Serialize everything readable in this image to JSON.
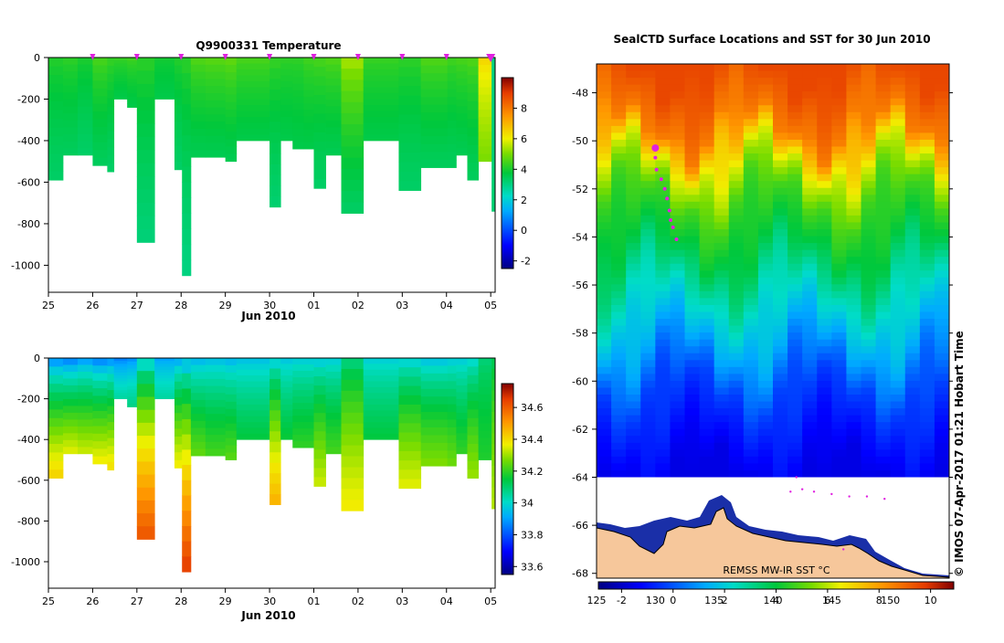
{
  "charts": [
    {
      "id": "temperature",
      "type": "heatmap",
      "title": "Q9900331  Temperature",
      "xlabel": "Jun 2010",
      "x_tick_labels": [
        "25",
        "26",
        "27",
        "28",
        "29",
        "30",
        "01",
        "02",
        "03",
        "04",
        "05"
      ],
      "xlim": [
        25,
        35.1
      ],
      "ylim": [
        -1130,
        0
      ],
      "y_ticks": [
        0,
        -200,
        -400,
        -600,
        -800,
        -1000
      ],
      "colorbar_ticks": [
        -2,
        0,
        2,
        4,
        6,
        8
      ],
      "colorbar_range": [
        -2.5,
        10
      ],
      "profile_markers_x": [
        26,
        27,
        28,
        29,
        30,
        31,
        32,
        33,
        34,
        35
      ],
      "profiles": [
        {
          "x": 25.0,
          "w": 0.33,
          "depth": 590,
          "surface": 4.2,
          "deep": 3.3
        },
        {
          "x": 25.33,
          "w": 0.33,
          "depth": 470,
          "surface": 4.3,
          "deep": 3.4
        },
        {
          "x": 25.66,
          "w": 0.34,
          "depth": 470,
          "surface": 4.1,
          "deep": 3.3
        },
        {
          "x": 26.0,
          "w": 0.33,
          "depth": 520,
          "surface": 4.6,
          "deep": 3.4
        },
        {
          "x": 26.33,
          "w": 0.15,
          "depth": 550,
          "surface": 4.4,
          "deep": 3.3
        },
        {
          "x": 26.48,
          "w": 0.3,
          "depth": 200,
          "surface": 4.4,
          "deep": 3.6
        },
        {
          "x": 26.78,
          "w": 0.22,
          "depth": 240,
          "surface": 4.5,
          "deep": 3.6
        },
        {
          "x": 27.0,
          "w": 0.4,
          "depth": 890,
          "surface": 4.3,
          "deep": 3.1
        },
        {
          "x": 27.4,
          "w": 0.45,
          "depth": 200,
          "surface": 4.0,
          "deep": 3.6
        },
        {
          "x": 27.85,
          "w": 0.17,
          "depth": 540,
          "surface": 4.2,
          "deep": 3.3
        },
        {
          "x": 28.02,
          "w": 0.2,
          "depth": 1050,
          "surface": 4.3,
          "deep": 3.0
        },
        {
          "x": 28.22,
          "w": 0.33,
          "depth": 480,
          "surface": 4.7,
          "deep": 3.5
        },
        {
          "x": 28.55,
          "w": 0.45,
          "depth": 480,
          "surface": 4.8,
          "deep": 3.5
        },
        {
          "x": 29.0,
          "w": 0.25,
          "depth": 500,
          "surface": 4.9,
          "deep": 3.5
        },
        {
          "x": 29.25,
          "w": 0.75,
          "depth": 400,
          "surface": 4.6,
          "deep": 3.6
        },
        {
          "x": 30.0,
          "w": 0.25,
          "depth": 720,
          "surface": 4.4,
          "deep": 3.2
        },
        {
          "x": 30.25,
          "w": 0.27,
          "depth": 400,
          "surface": 4.3,
          "deep": 3.6
        },
        {
          "x": 30.52,
          "w": 0.25,
          "depth": 440,
          "surface": 4.3,
          "deep": 3.6
        },
        {
          "x": 30.77,
          "w": 0.23,
          "depth": 440,
          "surface": 4.5,
          "deep": 3.6
        },
        {
          "x": 31.0,
          "w": 0.27,
          "depth": 630,
          "surface": 4.6,
          "deep": 3.3
        },
        {
          "x": 31.27,
          "w": 0.35,
          "depth": 470,
          "surface": 4.7,
          "deep": 3.5
        },
        {
          "x": 31.62,
          "w": 0.5,
          "depth": 750,
          "surface": 5.6,
          "deep": 3.3
        },
        {
          "x": 32.12,
          "w": 0.8,
          "depth": 400,
          "surface": 4.4,
          "deep": 3.6
        },
        {
          "x": 32.92,
          "w": 0.5,
          "depth": 640,
          "surface": 4.3,
          "deep": 3.3
        },
        {
          "x": 33.42,
          "w": 0.6,
          "depth": 530,
          "surface": 4.7,
          "deep": 3.4
        },
        {
          "x": 34.02,
          "w": 0.2,
          "depth": 530,
          "surface": 4.5,
          "deep": 3.4
        },
        {
          "x": 34.22,
          "w": 0.25,
          "depth": 470,
          "surface": 4.6,
          "deep": 3.5
        },
        {
          "x": 34.47,
          "w": 0.25,
          "depth": 590,
          "surface": 4.7,
          "deep": 3.4
        },
        {
          "x": 34.72,
          "w": 0.3,
          "depth": 500,
          "surface": 6.6,
          "deep": 5.0
        },
        {
          "x": 35.02,
          "w": 0.08,
          "depth": 740,
          "surface": 3.0,
          "deep": 3.2
        }
      ]
    },
    {
      "id": "salinity",
      "type": "heatmap",
      "title": "",
      "xlabel": "Jun 2010",
      "x_tick_labels": [
        "25",
        "26",
        "27",
        "28",
        "29",
        "30",
        "01",
        "02",
        "03",
        "04",
        "05"
      ],
      "xlim": [
        25,
        35.1
      ],
      "ylim": [
        -1130,
        0
      ],
      "y_ticks": [
        0,
        -200,
        -400,
        -600,
        -800,
        -1000
      ],
      "colorbar_ticks": [
        33.6,
        33.8,
        34,
        34.2,
        34.4,
        34.6
      ],
      "colorbar_tick_labels": [
        "33.6",
        "33.8",
        "34",
        "34.2",
        "34.4",
        "34.6"
      ],
      "colorbar_range": [
        33.55,
        34.75
      ],
      "profiles": [
        {
          "x": 25.0,
          "w": 0.33,
          "depth": 590,
          "surface": 33.82,
          "deep": 34.42
        },
        {
          "x": 25.33,
          "w": 0.33,
          "depth": 470,
          "surface": 33.8,
          "deep": 34.36
        },
        {
          "x": 25.66,
          "w": 0.34,
          "depth": 470,
          "surface": 33.84,
          "deep": 34.34
        },
        {
          "x": 26.0,
          "w": 0.33,
          "depth": 520,
          "surface": 33.8,
          "deep": 34.38
        },
        {
          "x": 26.33,
          "w": 0.15,
          "depth": 550,
          "surface": 33.82,
          "deep": 34.4
        },
        {
          "x": 26.48,
          "w": 0.3,
          "depth": 200,
          "surface": 33.83,
          "deep": 34.05
        },
        {
          "x": 26.78,
          "w": 0.22,
          "depth": 240,
          "surface": 33.85,
          "deep": 34.08
        },
        {
          "x": 27.0,
          "w": 0.4,
          "depth": 890,
          "surface": 33.92,
          "deep": 34.62
        },
        {
          "x": 27.4,
          "w": 0.45,
          "depth": 200,
          "surface": 33.88,
          "deep": 34.05
        },
        {
          "x": 27.85,
          "w": 0.17,
          "depth": 540,
          "surface": 33.86,
          "deep": 34.38
        },
        {
          "x": 28.02,
          "w": 0.2,
          "depth": 1050,
          "surface": 33.86,
          "deep": 34.66
        },
        {
          "x": 28.22,
          "w": 0.33,
          "depth": 480,
          "surface": 33.9,
          "deep": 34.25
        },
        {
          "x": 28.55,
          "w": 0.45,
          "depth": 480,
          "surface": 33.92,
          "deep": 34.22
        },
        {
          "x": 29.0,
          "w": 0.25,
          "depth": 500,
          "surface": 33.9,
          "deep": 34.24
        },
        {
          "x": 29.25,
          "w": 0.75,
          "depth": 400,
          "surface": 33.93,
          "deep": 34.15
        },
        {
          "x": 30.0,
          "w": 0.25,
          "depth": 720,
          "surface": 33.92,
          "deep": 34.47
        },
        {
          "x": 30.25,
          "w": 0.27,
          "depth": 400,
          "surface": 33.94,
          "deep": 34.16
        },
        {
          "x": 30.52,
          "w": 0.25,
          "depth": 440,
          "surface": 33.95,
          "deep": 34.2
        },
        {
          "x": 30.77,
          "w": 0.23,
          "depth": 440,
          "surface": 33.95,
          "deep": 34.2
        },
        {
          "x": 31.0,
          "w": 0.27,
          "depth": 630,
          "surface": 33.93,
          "deep": 34.34
        },
        {
          "x": 31.27,
          "w": 0.35,
          "depth": 470,
          "surface": 33.95,
          "deep": 34.22
        },
        {
          "x": 31.62,
          "w": 0.5,
          "depth": 750,
          "surface": 34.05,
          "deep": 34.38
        },
        {
          "x": 32.12,
          "w": 0.8,
          "depth": 400,
          "surface": 33.96,
          "deep": 34.15
        },
        {
          "x": 32.92,
          "w": 0.5,
          "depth": 640,
          "surface": 33.94,
          "deep": 34.36
        },
        {
          "x": 33.42,
          "w": 0.6,
          "depth": 530,
          "surface": 33.92,
          "deep": 34.28
        },
        {
          "x": 34.02,
          "w": 0.2,
          "depth": 530,
          "surface": 33.94,
          "deep": 34.26
        },
        {
          "x": 34.22,
          "w": 0.25,
          "depth": 470,
          "surface": 33.95,
          "deep": 34.2
        },
        {
          "x": 34.47,
          "w": 0.25,
          "depth": 590,
          "surface": 33.96,
          "deep": 34.3
        },
        {
          "x": 34.72,
          "w": 0.3,
          "depth": 500,
          "surface": 34.08,
          "deep": 34.18
        },
        {
          "x": 35.02,
          "w": 0.08,
          "depth": 740,
          "surface": 34.1,
          "deep": 34.32
        }
      ]
    },
    {
      "id": "sst-map",
      "type": "heatmap",
      "title": "SealCTD Surface Locations and SST for 30 Jun 2010",
      "lon_range": [
        125,
        155
      ],
      "lat_range": [
        -68.2,
        -46.8
      ],
      "x_tick_labels": [
        "125",
        "130",
        "135",
        "140",
        "145",
        "150"
      ],
      "y_tick_values": [
        -48,
        -50,
        -52,
        -54,
        -56,
        -58,
        -60,
        -62,
        -64,
        -66,
        -68
      ],
      "y_tick_labels": [
        "-48",
        "-50",
        "-52",
        "-54",
        "-56",
        "-58",
        "-60",
        "-62",
        "-64",
        "-66",
        "-68"
      ],
      "colorbar_ticks": [
        -2,
        0,
        2,
        4,
        6,
        8,
        10
      ],
      "colorbar_tick_labels": [
        "-2",
        "0",
        "2",
        "4",
        "6",
        "8",
        "10"
      ],
      "colorbar_range": [
        -2.9,
        10.9
      ],
      "sst_latitude_profile": [
        {
          "lat": -47.0,
          "sst": 9.6
        },
        {
          "lat": -49.5,
          "sst": 8.6
        },
        {
          "lat": -51.0,
          "sst": 6.2
        },
        {
          "lat": -52.5,
          "sst": 4.8
        },
        {
          "lat": -54.5,
          "sst": 3.9
        },
        {
          "lat": -56.5,
          "sst": 2.5
        },
        {
          "lat": -58.5,
          "sst": 1.2
        },
        {
          "lat": -60.5,
          "sst": -0.3
        },
        {
          "lat": -62.5,
          "sst": -1.1
        },
        {
          "lat": -64.0,
          "sst": -1.6
        }
      ],
      "ice_edge_lat": -64.0,
      "latest_location": {
        "lon": 130.0,
        "lat": -50.3
      },
      "track_points": [
        {
          "lon": 130.0,
          "lat": -50.7
        },
        {
          "lon": 130.1,
          "lat": -51.2
        },
        {
          "lon": 130.5,
          "lat": -51.6
        },
        {
          "lon": 130.8,
          "lat": -52.0
        },
        {
          "lon": 131.0,
          "lat": -52.4
        },
        {
          "lon": 131.2,
          "lat": -52.9
        },
        {
          "lon": 131.3,
          "lat": -53.3
        },
        {
          "lon": 131.5,
          "lat": -53.6
        },
        {
          "lon": 131.8,
          "lat": -54.1
        }
      ],
      "ice_track_points": [
        {
          "lon": 141.5,
          "lat": -64.6
        },
        {
          "lon": 142.5,
          "lat": -64.5
        },
        {
          "lon": 143.5,
          "lat": -64.6
        },
        {
          "lon": 145.0,
          "lat": -64.7
        },
        {
          "lon": 146.5,
          "lat": -64.8
        },
        {
          "lon": 148.0,
          "lat": -64.8
        },
        {
          "lon": 149.5,
          "lat": -64.9
        },
        {
          "lon": 142.0,
          "lat": -64.0
        },
        {
          "lon": 146.0,
          "lat": -67.0
        }
      ],
      "source_label": "REMSS MW-IR SST °C"
    }
  ],
  "credit": "© IMOS 07-Apr-2017 01:21 Hobart Time",
  "colors": {
    "profile_marker": "#e020e0",
    "land": "#f6c79b",
    "ice": "#ffffff"
  }
}
